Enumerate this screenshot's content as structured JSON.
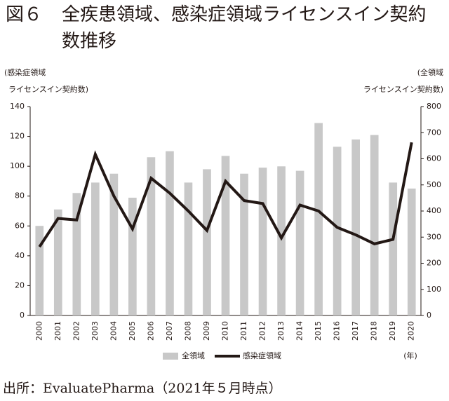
{
  "chart_data": {
    "type": "combo",
    "figure_label": "図６",
    "title": "全疾患領域、感染症領域ライセンスイン契約数推移",
    "y_label": [
      "(感染症領域",
      "ライセンスイン契約数)"
    ],
    "y2_label": [
      "(全領域",
      "ライセンスイン契約数)"
    ],
    "x_unit": "(年)",
    "source": "出所：EvaluatePharma（2021年５月時点）",
    "categories": [
      "2000",
      "2001",
      "2002",
      "2003",
      "2004",
      "2005",
      "2006",
      "2007",
      "2008",
      "2009",
      "2010",
      "2011",
      "2012",
      "2013",
      "2014",
      "2015",
      "2016",
      "2017",
      "2018",
      "2019",
      "2020"
    ],
    "ylim": [
      0,
      140
    ],
    "yticks": [
      0,
      20,
      40,
      60,
      80,
      100,
      120,
      140
    ],
    "y2lim": [
      0,
      800
    ],
    "y2ticks": [
      0,
      100,
      200,
      300,
      400,
      500,
      600,
      700,
      800
    ],
    "series": [
      {
        "name": "全領域",
        "type": "bar",
        "axis": "y2",
        "color": "#c8c8c8",
        "values": [
          343,
          406,
          469,
          509,
          543,
          451,
          606,
          629,
          509,
          560,
          611,
          543,
          566,
          571,
          554,
          737,
          646,
          674,
          691,
          509,
          486
        ]
      },
      {
        "name": "感染症領域",
        "type": "line",
        "color": "#231815",
        "values": [
          46,
          65,
          64,
          108,
          80,
          58,
          92,
          82,
          70,
          57,
          90,
          77,
          75,
          52,
          74,
          70,
          59,
          54,
          48,
          51,
          116
        ]
      }
    ]
  }
}
